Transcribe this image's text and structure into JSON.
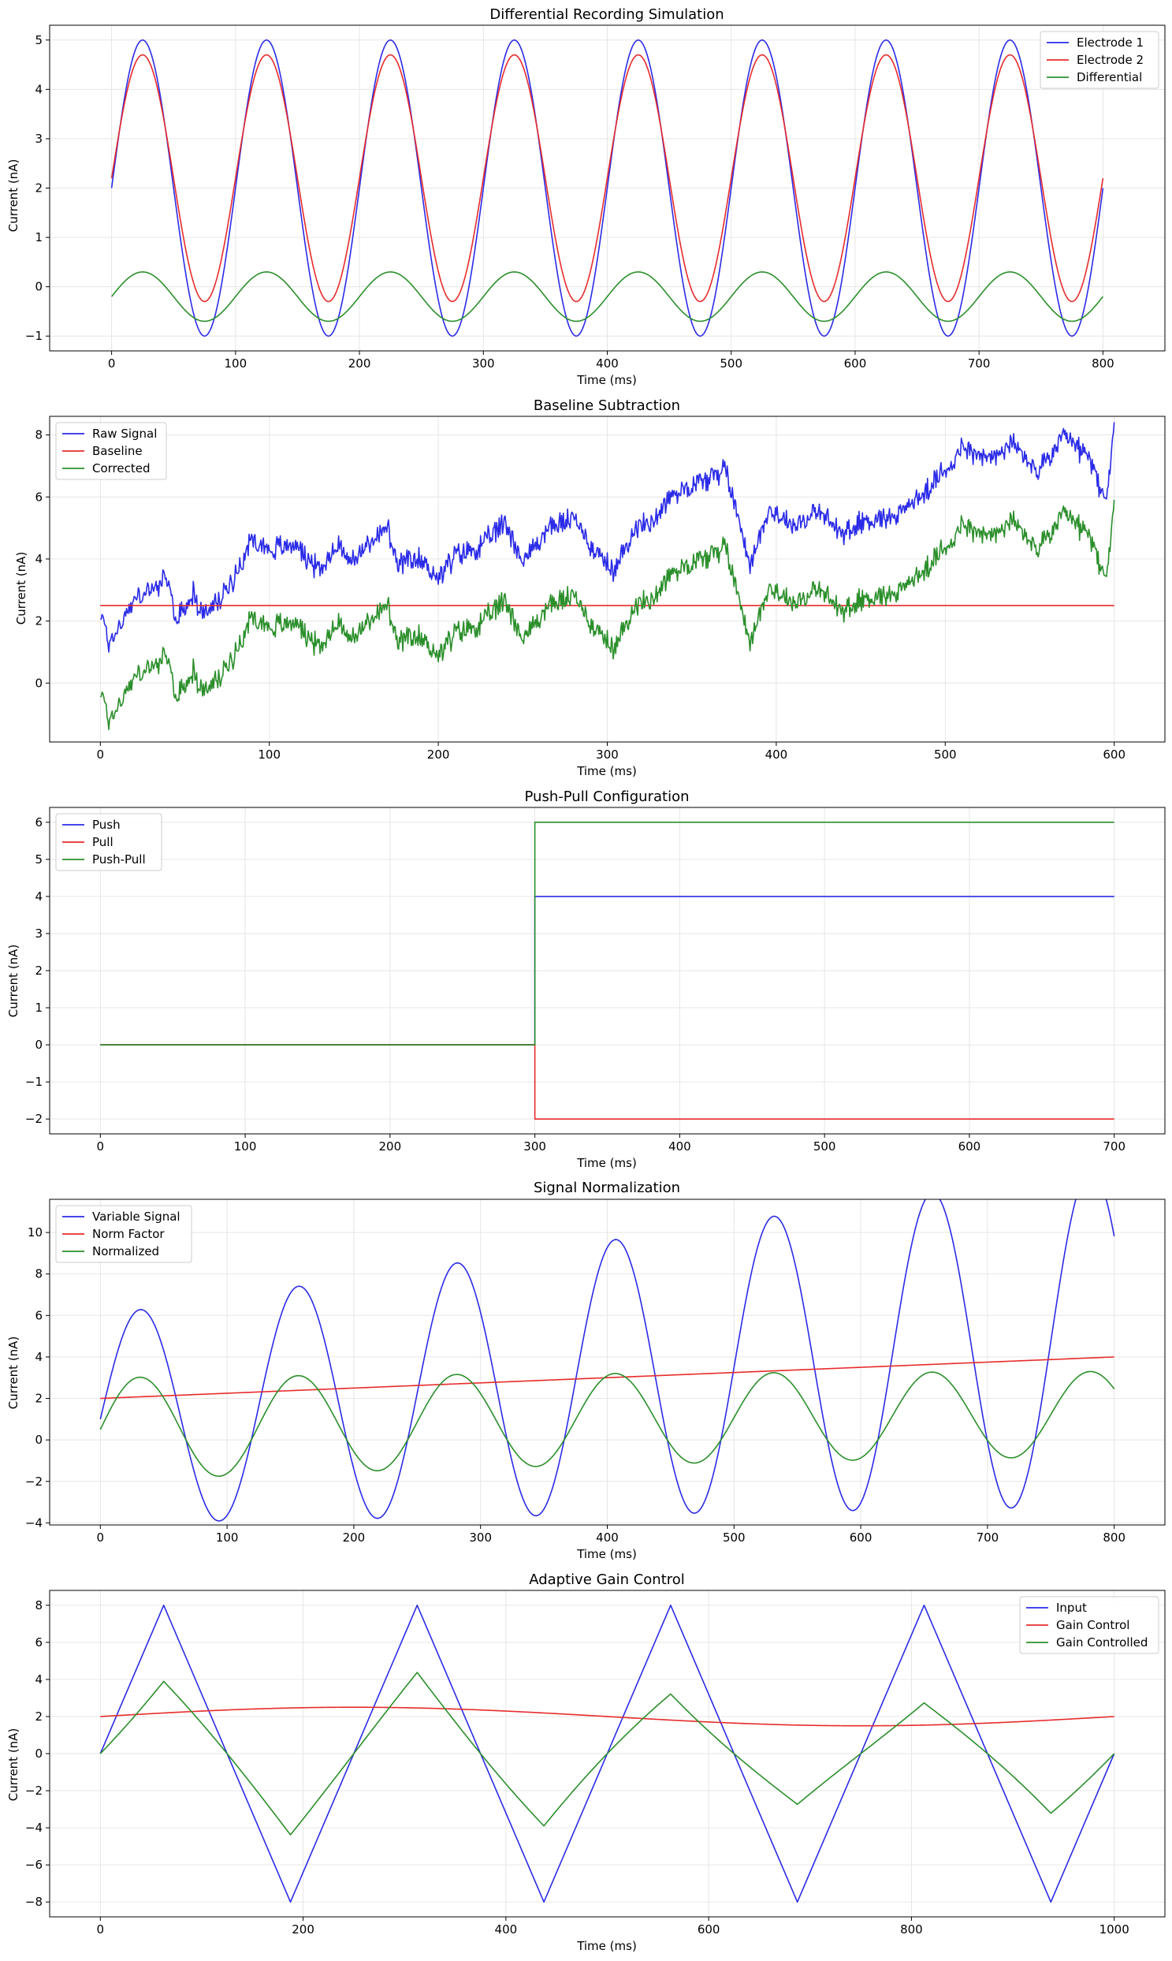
{
  "colors": {
    "blue": "#2b2be8",
    "red": "#e82b2b",
    "green": "#2b8f2b",
    "grid": "#e6e6e6",
    "axis": "#000000"
  },
  "chart_data": [
    {
      "type": "line",
      "title": "Differential Recording Simulation",
      "xlabel": "Time (ms)",
      "ylabel": "Current (nA)",
      "xlim": [
        -50,
        850
      ],
      "ylim": [
        -1.3,
        5.3
      ],
      "xticks": [
        0,
        100,
        200,
        300,
        400,
        500,
        600,
        700,
        800
      ],
      "yticks": [
        -1,
        0,
        1,
        2,
        3,
        4,
        5
      ],
      "grid": true,
      "legend_position": "top-right",
      "series": [
        {
          "name": "Electrode 1",
          "color": "blue",
          "function": "2 + 3*sin(2*pi*0.01*t)",
          "x_range": [
            0,
            800
          ]
        },
        {
          "name": "Electrode 2",
          "color": "red",
          "function": "2.2 + 2.5*sin(2*pi*0.01*t)",
          "x_range": [
            0,
            800
          ]
        },
        {
          "name": "Differential",
          "color": "green",
          "function": "-0.2 + 0.5*sin(2*pi*0.01*t)",
          "x_range": [
            0,
            800
          ]
        }
      ]
    },
    {
      "type": "line",
      "title": "Baseline Subtraction",
      "xlabel": "Time (ms)",
      "ylabel": "Current (nA)",
      "xlim": [
        -30,
        630
      ],
      "ylim": [
        -1.9,
        8.6
      ],
      "xticks": [
        0,
        100,
        200,
        300,
        400,
        500,
        600
      ],
      "yticks": [
        0,
        2,
        4,
        6,
        8
      ],
      "grid": true,
      "legend_position": "top-left",
      "series": [
        {
          "name": "Raw Signal",
          "color": "blue",
          "function": "random walk (noisy), starts ~2.2, ends ~8.1",
          "x_range": [
            0,
            600
          ],
          "x": [
            0,
            5,
            10,
            20,
            30,
            40,
            45,
            55,
            60,
            70,
            80,
            90,
            100,
            115,
            130,
            140,
            150,
            160,
            170,
            175,
            190,
            200,
            210,
            225,
            240,
            250,
            265,
            280,
            295,
            305,
            315,
            325,
            335,
            345,
            360,
            370,
            385,
            395,
            410,
            425,
            440,
            450,
            470,
            490,
            510,
            525,
            540,
            555,
            570,
            585,
            595,
            600
          ],
          "y": [
            2.3,
            1.3,
            1.7,
            2.7,
            3.0,
            3.3,
            2.0,
            2.9,
            2.2,
            2.6,
            3.5,
            4.7,
            4.3,
            4.5,
            3.6,
            4.5,
            3.9,
            4.6,
            5.0,
            3.8,
            4.0,
            3.4,
            4.1,
            4.4,
            5.2,
            3.9,
            5.0,
            5.3,
            4.1,
            3.6,
            5.0,
            5.1,
            5.9,
            6.3,
            6.6,
            6.9,
            3.8,
            5.6,
            5.1,
            5.5,
            4.8,
            5.2,
            5.4,
            6.2,
            7.6,
            7.2,
            7.7,
            6.8,
            7.9,
            7.3,
            5.8,
            8.1
          ]
        },
        {
          "name": "Baseline",
          "color": "red",
          "function": "2.5",
          "x_range": [
            0,
            600
          ]
        },
        {
          "name": "Corrected",
          "color": "green",
          "function": "Raw Signal - 2.5",
          "x_range": [
            0,
            600
          ]
        }
      ]
    },
    {
      "type": "line",
      "title": "Push-Pull Configuration",
      "xlabel": "Time (ms)",
      "ylabel": "Current (nA)",
      "xlim": [
        -35,
        735
      ],
      "ylim": [
        -2.4,
        6.4
      ],
      "xticks": [
        0,
        100,
        200,
        300,
        400,
        500,
        600,
        700
      ],
      "yticks": [
        -2,
        -1,
        0,
        1,
        2,
        3,
        4,
        5,
        6
      ],
      "grid": true,
      "legend_position": "top-left",
      "series": [
        {
          "name": "Push",
          "color": "blue",
          "x": [
            0,
            300,
            300,
            700
          ],
          "y": [
            0,
            0,
            4,
            4
          ]
        },
        {
          "name": "Pull",
          "color": "red",
          "x": [
            0,
            300,
            300,
            700
          ],
          "y": [
            0,
            0,
            -2,
            -2
          ]
        },
        {
          "name": "Push-Pull",
          "color": "green",
          "x": [
            0,
            300,
            300,
            700
          ],
          "y": [
            0,
            0,
            6,
            6
          ]
        }
      ]
    },
    {
      "type": "line",
      "title": "Signal Normalization",
      "xlabel": "Time (ms)",
      "ylabel": "Current (nA)",
      "xlim": [
        -40,
        840
      ],
      "ylim": [
        -4.1,
        11.6
      ],
      "xticks": [
        0,
        100,
        200,
        300,
        400,
        500,
        600,
        700,
        800
      ],
      "yticks": [
        -4,
        -2,
        0,
        2,
        4,
        6,
        8,
        10
      ],
      "grid": true,
      "legend_position": "top-left",
      "series": [
        {
          "name": "Variable Signal",
          "color": "blue",
          "function": "(1 + 0.005*t) + (5 + 0.004*t)*sin(2*pi*0.008*t)",
          "x_range": [
            0,
            800
          ]
        },
        {
          "name": "Norm Factor",
          "color": "red",
          "function": "2 + 0.0025*t",
          "x_range": [
            0,
            800
          ]
        },
        {
          "name": "Normalized",
          "color": "green",
          "function": "Variable Signal / Norm Factor",
          "x_range": [
            0,
            800
          ]
        }
      ]
    },
    {
      "type": "line",
      "title": "Adaptive Gain Control",
      "xlabel": "Time (ms)",
      "ylabel": "Current (nA)",
      "xlim": [
        -50,
        1050
      ],
      "ylim": [
        -8.8,
        8.8
      ],
      "xticks": [
        0,
        200,
        400,
        600,
        800,
        1000
      ],
      "yticks": [
        -8,
        -6,
        -4,
        -2,
        0,
        2,
        4,
        6,
        8
      ],
      "grid": true,
      "legend_position": "top-right",
      "series": [
        {
          "name": "Input",
          "color": "blue",
          "x": [
            0,
            62.5,
            187.5,
            312.5,
            437.5,
            562.5,
            687.5,
            812.5,
            937.5,
            1000
          ],
          "y": [
            0,
            8,
            -8,
            8,
            -8,
            8,
            -8,
            8,
            -8,
            0
          ]
        },
        {
          "name": "Gain Control",
          "color": "red",
          "function": "2 + 0.5*sin(2*pi*0.001*t)",
          "x_range": [
            0,
            1000
          ]
        },
        {
          "name": "Gain Controlled",
          "color": "green",
          "function": "Input * Gain Control / 4.5",
          "x_range": [
            0,
            1000
          ]
        }
      ]
    }
  ]
}
